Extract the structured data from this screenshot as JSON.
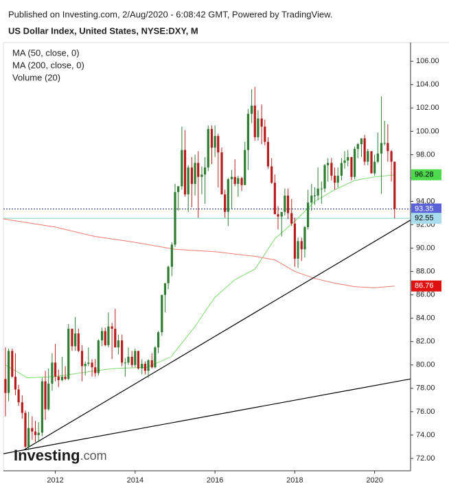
{
  "header": "Published on Investing.com, 2/Aug/2020 - 6:08:42 GMT, Powered by TradingView.",
  "brand": "Investing",
  "brand_suffix": ".com",
  "chart_data": {
    "type": "candlestick",
    "title": "US Dollar Index, United States, NYSE:DXY, M",
    "volume_label": "Volume (20)",
    "up_color": "#2e7d32",
    "down_color": "#b71c1c",
    "xlim": [
      2010.7,
      2020.9
    ],
    "xticks": [
      2012,
      2014,
      2016,
      2018,
      2020
    ],
    "ylim": [
      70.94,
      107.6
    ],
    "yticks": [
      {
        "value": 72,
        "label": "72.00"
      },
      {
        "value": 74,
        "label": "74.00"
      },
      {
        "value": 76,
        "label": "76.00"
      },
      {
        "value": 78,
        "label": "78.00"
      },
      {
        "value": 80,
        "label": "80.00"
      },
      {
        "value": 82,
        "label": "82.00"
      },
      {
        "value": 84,
        "label": "84.00"
      },
      {
        "value": 86,
        "label": "86.00"
      },
      {
        "value": 88,
        "label": "88.00"
      },
      {
        "value": 90,
        "label": "90.00"
      },
      {
        "value": 92,
        "label": "92.00"
      },
      {
        "value": 94,
        "label": "94.00"
      },
      {
        "value": 96,
        "label": "96.00"
      },
      {
        "value": 98,
        "label": "98.00"
      },
      {
        "value": 100,
        "label": "100.00"
      },
      {
        "value": 102,
        "label": "102.00"
      },
      {
        "value": 104,
        "label": "104.00"
      },
      {
        "value": 106,
        "label": "106.00"
      }
    ],
    "x": [
      2010.75,
      2010.83,
      2010.92,
      2011.0,
      2011.08,
      2011.17,
      2011.25,
      2011.33,
      2011.42,
      2011.5,
      2011.58,
      2011.67,
      2011.75,
      2011.83,
      2011.92,
      2012.0,
      2012.08,
      2012.17,
      2012.25,
      2012.33,
      2012.42,
      2012.5,
      2012.58,
      2012.67,
      2012.75,
      2012.83,
      2012.92,
      2013.0,
      2013.08,
      2013.17,
      2013.25,
      2013.33,
      2013.42,
      2013.5,
      2013.58,
      2013.67,
      2013.75,
      2013.83,
      2013.92,
      2014.0,
      2014.08,
      2014.17,
      2014.25,
      2014.33,
      2014.42,
      2014.5,
      2014.58,
      2014.67,
      2014.75,
      2014.83,
      2014.92,
      2015.0,
      2015.08,
      2015.17,
      2015.25,
      2015.33,
      2015.42,
      2015.5,
      2015.58,
      2015.67,
      2015.75,
      2015.83,
      2015.92,
      2016.0,
      2016.08,
      2016.17,
      2016.25,
      2016.33,
      2016.42,
      2016.5,
      2016.58,
      2016.67,
      2016.75,
      2016.83,
      2016.92,
      2017.0,
      2017.08,
      2017.17,
      2017.25,
      2017.33,
      2017.42,
      2017.5,
      2017.58,
      2017.67,
      2017.75,
      2017.83,
      2017.92,
      2018.0,
      2018.08,
      2018.17,
      2018.25,
      2018.33,
      2018.42,
      2018.5,
      2018.58,
      2018.67,
      2018.75,
      2018.83,
      2018.92,
      2019.0,
      2019.08,
      2019.17,
      2019.25,
      2019.33,
      2019.42,
      2019.5,
      2019.58,
      2019.67,
      2019.75,
      2019.83,
      2019.92,
      2020.0,
      2020.08,
      2020.17,
      2020.25,
      2020.33,
      2020.42,
      2020.5
    ],
    "ohlc": [
      [
        78.8,
        81.5,
        75.6,
        77.6
      ],
      [
        77.6,
        81.4,
        76.9,
        81.2
      ],
      [
        81.2,
        81.4,
        78.9,
        79.0
      ],
      [
        79.0,
        81.0,
        77.4,
        77.9
      ],
      [
        77.9,
        78.3,
        76.5,
        76.8
      ],
      [
        76.8,
        77.4,
        75.4,
        75.9
      ],
      [
        75.9,
        76.1,
        72.9,
        73.0
      ],
      [
        73.0,
        76.0,
        72.7,
        74.6
      ],
      [
        74.6,
        75.6,
        73.6,
        74.3
      ],
      [
        74.3,
        75.2,
        73.4,
        74.0
      ],
      [
        74.0,
        75.1,
        73.4,
        74.2
      ],
      [
        74.2,
        78.9,
        73.9,
        78.6
      ],
      [
        78.6,
        79.5,
        75.3,
        76.2
      ],
      [
        76.2,
        79.7,
        76.1,
        78.4
      ],
      [
        78.4,
        81.0,
        77.8,
        80.2
      ],
      [
        80.2,
        81.8,
        78.6,
        79.0
      ],
      [
        79.0,
        79.6,
        78.1,
        78.7
      ],
      [
        78.7,
        80.7,
        78.6,
        79.0
      ],
      [
        79.0,
        79.9,
        78.7,
        78.8
      ],
      [
        78.8,
        83.5,
        78.7,
        83.1
      ],
      [
        83.1,
        83.1,
        81.2,
        81.6
      ],
      [
        81.6,
        84.1,
        81.2,
        82.7
      ],
      [
        82.7,
        83.1,
        81.1,
        81.2
      ],
      [
        81.2,
        81.7,
        78.6,
        79.9
      ],
      [
        79.9,
        80.3,
        79.1,
        80.1
      ],
      [
        80.1,
        81.5,
        79.9,
        80.2
      ],
      [
        80.2,
        80.5,
        79.0,
        79.8
      ],
      [
        79.8,
        80.5,
        79.0,
        79.3
      ],
      [
        79.3,
        82.2,
        79.1,
        82.1
      ],
      [
        82.1,
        83.2,
        81.6,
        82.9
      ],
      [
        82.9,
        83.2,
        81.6,
        81.7
      ],
      [
        81.7,
        84.5,
        81.5,
        83.3
      ],
      [
        83.3,
        83.6,
        80.5,
        83.1
      ],
      [
        83.1,
        84.8,
        81.5,
        81.5
      ],
      [
        81.5,
        82.6,
        80.9,
        82.1
      ],
      [
        82.1,
        82.6,
        79.9,
        80.2
      ],
      [
        80.2,
        80.6,
        79.0,
        80.2
      ],
      [
        80.2,
        81.5,
        80.0,
        80.7
      ],
      [
        80.7,
        81.2,
        79.8,
        80.0
      ],
      [
        80.0,
        81.4,
        79.8,
        81.2
      ],
      [
        81.2,
        81.2,
        79.6,
        79.7
      ],
      [
        79.7,
        80.5,
        79.2,
        80.1
      ],
      [
        80.1,
        80.3,
        79.2,
        79.5
      ],
      [
        79.5,
        80.5,
        78.9,
        80.4
      ],
      [
        80.4,
        81.0,
        79.7,
        79.8
      ],
      [
        79.8,
        81.6,
        79.7,
        81.5
      ],
      [
        81.5,
        82.9,
        81.0,
        82.8
      ],
      [
        82.8,
        86.0,
        82.5,
        86.0
      ],
      [
        86.0,
        87.0,
        84.5,
        87.0
      ],
      [
        87.0,
        88.5,
        86.5,
        88.4
      ],
      [
        88.4,
        90.5,
        87.6,
        90.3
      ],
      [
        90.3,
        95.5,
        90.1,
        94.8
      ],
      [
        94.8,
        95.3,
        93.2,
        95.3
      ],
      [
        95.3,
        100.4,
        95.0,
        98.4
      ],
      [
        98.4,
        100.1,
        94.4,
        94.6
      ],
      [
        94.6,
        97.1,
        93.1,
        96.9
      ],
      [
        96.9,
        97.8,
        93.5,
        95.5
      ],
      [
        95.5,
        98.0,
        94.5,
        97.3
      ],
      [
        97.3,
        98.3,
        92.6,
        96.1
      ],
      [
        96.1,
        97.0,
        94.6,
        96.3
      ],
      [
        96.3,
        97.8,
        93.8,
        96.9
      ],
      [
        96.9,
        100.5,
        96.6,
        100.2
      ],
      [
        100.2,
        100.5,
        97.2,
        98.6
      ],
      [
        98.6,
        100.5,
        97.8,
        99.6
      ],
      [
        99.6,
        99.8,
        95.2,
        98.2
      ],
      [
        98.2,
        98.6,
        94.6,
        94.6
      ],
      [
        94.6,
        95.0,
        92.6,
        93.1
      ],
      [
        93.1,
        96.0,
        91.9,
        95.9
      ],
      [
        95.9,
        96.7,
        93.4,
        96.1
      ],
      [
        96.1,
        97.6,
        95.3,
        95.5
      ],
      [
        95.5,
        96.2,
        94.4,
        96.0
      ],
      [
        96.0,
        96.1,
        94.9,
        95.4
      ],
      [
        95.4,
        99.1,
        95.4,
        98.4
      ],
      [
        98.4,
        101.9,
        96.7,
        101.5
      ],
      [
        101.5,
        103.6,
        100.7,
        102.2
      ],
      [
        102.2,
        103.8,
        99.2,
        99.5
      ],
      [
        99.5,
        101.8,
        99.2,
        101.1
      ],
      [
        101.1,
        102.3,
        98.9,
        100.4
      ],
      [
        100.4,
        101.0,
        98.8,
        99.1
      ],
      [
        99.1,
        99.5,
        96.8,
        97.0
      ],
      [
        97.0,
        97.7,
        95.5,
        95.6
      ],
      [
        95.6,
        96.3,
        92.9,
        92.9
      ],
      [
        92.9,
        93.6,
        91.6,
        92.7
      ],
      [
        92.7,
        93.1,
        91.0,
        93.1
      ],
      [
        93.1,
        95.1,
        92.8,
        94.5
      ],
      [
        94.5,
        95.1,
        92.5,
        93.0
      ],
      [
        93.0,
        94.2,
        91.9,
        92.1
      ],
      [
        92.1,
        92.6,
        88.4,
        89.1
      ],
      [
        89.1,
        90.9,
        88.3,
        90.6
      ],
      [
        90.6,
        90.9,
        88.9,
        89.9
      ],
      [
        89.9,
        91.9,
        89.2,
        91.8
      ],
      [
        91.8,
        95.0,
        91.6,
        93.9
      ],
      [
        93.9,
        95.5,
        93.2,
        94.5
      ],
      [
        94.5,
        95.2,
        93.7,
        94.5
      ],
      [
        94.5,
        96.9,
        94.1,
        95.1
      ],
      [
        95.1,
        95.7,
        93.8,
        95.1
      ],
      [
        95.1,
        97.2,
        94.8,
        97.1
      ],
      [
        97.1,
        97.7,
        95.7,
        97.3
      ],
      [
        97.3,
        97.7,
        95.8,
        96.2
      ],
      [
        96.2,
        96.9,
        95.0,
        95.6
      ],
      [
        95.6,
        96.9,
        95.2,
        96.2
      ],
      [
        96.2,
        97.7,
        95.8,
        97.3
      ],
      [
        97.3,
        98.3,
        96.8,
        97.5
      ],
      [
        97.5,
        98.4,
        97.0,
        97.8
      ],
      [
        97.8,
        97.8,
        95.8,
        96.1
      ],
      [
        96.1,
        98.7,
        95.9,
        98.5
      ],
      [
        98.5,
        99.0,
        97.7,
        98.9
      ],
      [
        98.9,
        99.4,
        97.8,
        99.4
      ],
      [
        99.4,
        99.7,
        97.1,
        97.4
      ],
      [
        97.4,
        98.5,
        97.1,
        98.3
      ],
      [
        98.3,
        98.3,
        96.4,
        96.4
      ],
      [
        96.4,
        98.0,
        96.2,
        97.4
      ],
      [
        97.4,
        99.9,
        97.3,
        98.1
      ],
      [
        98.1,
        102.99,
        94.65,
        99.0
      ],
      [
        99.0,
        100.9,
        98.8,
        99.0
      ],
      [
        99.0,
        100.6,
        97.4,
        98.3
      ],
      [
        98.3,
        98.4,
        95.7,
        97.4
      ],
      [
        97.4,
        97.4,
        92.55,
        93.35
      ]
    ],
    "lines": [
      {
        "name": "MA (50, close, 0)",
        "color": "#7ddc6e",
        "x": [
          2010.75,
          2011.3,
          2012.0,
          2013.0,
          2013.5,
          2014.3,
          2014.9,
          2015.5,
          2016.0,
          2016.5,
          2017.0,
          2017.5,
          2018.0,
          2018.5,
          2019.0,
          2019.5,
          2020.0,
          2020.5
        ],
        "values": [
          80.0,
          78.9,
          79.0,
          79.5,
          79.7,
          79.8,
          80.7,
          83.3,
          85.8,
          87.3,
          88.2,
          90.8,
          92.3,
          94.0,
          95.0,
          95.8,
          96.1,
          96.28
        ]
      },
      {
        "name": "MA (200, close, 0)",
        "color": "#f07a6a",
        "x": [
          2010.7,
          2012.0,
          2013.0,
          2014.0,
          2015.0,
          2016.0,
          2017.0,
          2017.5,
          2018.0,
          2018.5,
          2019.0,
          2019.5,
          2020.0,
          2020.5
        ],
        "values": [
          92.5,
          91.8,
          91.0,
          90.5,
          89.9,
          89.7,
          89.3,
          89.0,
          88.0,
          87.4,
          87.0,
          86.7,
          86.6,
          86.76
        ]
      }
    ],
    "trendlines": [
      {
        "color": "#000000",
        "x": [
          2011.2,
          2020.9
        ],
        "values": [
          72.7,
          92.4
        ]
      },
      {
        "color": "#000000",
        "x": [
          2010.7,
          2020.9
        ],
        "values": [
          72.4,
          78.8
        ]
      }
    ],
    "price_labels": [
      {
        "value": 96.28,
        "color": "#4cd94c",
        "text_color": "#000000"
      },
      {
        "value": 93.35,
        "color": "#5a63d8",
        "text_color": "#ffffff",
        "line": "dotted",
        "line_color": "#1a237e"
      },
      {
        "value": 92.55,
        "color": "#a9dcec",
        "text_color": "#000000",
        "line": "solid",
        "line_color": "#7fcfc0"
      },
      {
        "value": 86.76,
        "color": "#e01010",
        "text_color": "#ffffff"
      }
    ]
  }
}
